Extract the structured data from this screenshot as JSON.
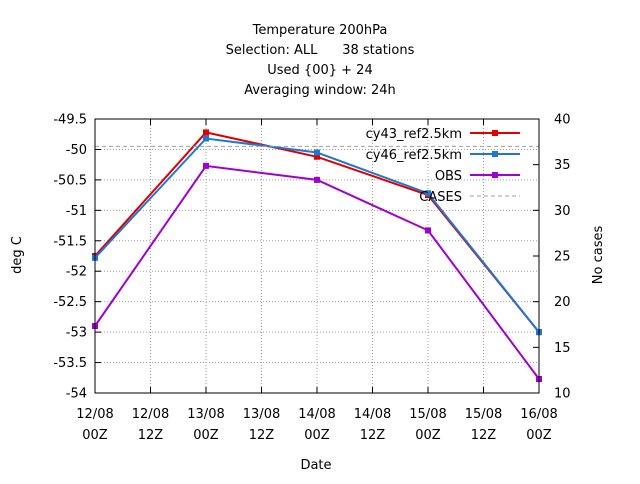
{
  "chart_data": {
    "type": "line",
    "title_lines": [
      "Temperature 200hPa",
      "Selection: ALL      38 stations",
      "Used {00} + 24",
      "Averaging window: 24h"
    ],
    "xlabel": "Date",
    "ylabel": "deg C",
    "y2label": "No cases",
    "x_ticks": [
      {
        "top": "12/08",
        "bottom": "00Z"
      },
      {
        "top": "12/08",
        "bottom": "12Z"
      },
      {
        "top": "13/08",
        "bottom": "00Z"
      },
      {
        "top": "13/08",
        "bottom": "12Z"
      },
      {
        "top": "14/08",
        "bottom": "00Z"
      },
      {
        "top": "14/08",
        "bottom": "12Z"
      },
      {
        "top": "15/08",
        "bottom": "00Z"
      },
      {
        "top": "15/08",
        "bottom": "12Z"
      },
      {
        "top": "16/08",
        "bottom": "00Z"
      }
    ],
    "xlim": [
      0,
      8
    ],
    "ylim": [
      -54,
      -49.5
    ],
    "y_ticks": [
      "-49.5",
      "-50",
      "-50.5",
      "-51",
      "-51.5",
      "-52",
      "-52.5",
      "-53",
      "-53.5",
      "-54"
    ],
    "y2lim": [
      10,
      40
    ],
    "y2_ticks": [
      "40",
      "35",
      "30",
      "25",
      "20",
      "15",
      "10"
    ],
    "grid": true,
    "legend_position": "top-right",
    "series": [
      {
        "name": "cy43_ref2.5km",
        "color": "#e00000",
        "axis": "y",
        "x": [
          0,
          2,
          4,
          6,
          8
        ],
        "values": [
          -51.75,
          -49.72,
          -50.12,
          -50.75,
          -53.0
        ]
      },
      {
        "name": "cy46_ref2.5km",
        "color": "#1f77d4",
        "axis": "y",
        "x": [
          0,
          2,
          4,
          6,
          8
        ],
        "values": [
          -51.78,
          -49.82,
          -50.05,
          -50.72,
          -53.0
        ]
      },
      {
        "name": "OBS",
        "color": "#a000d0",
        "axis": "y",
        "x": [
          0,
          2,
          4,
          6,
          8
        ],
        "values": [
          -52.9,
          -50.27,
          -50.5,
          -51.33,
          -53.77
        ]
      },
      {
        "name": "CASES",
        "color": "#a0a0a0",
        "axis": "y2",
        "dashed": true,
        "x": [
          0,
          8
        ],
        "values": [
          37.0,
          37.0
        ]
      }
    ]
  }
}
